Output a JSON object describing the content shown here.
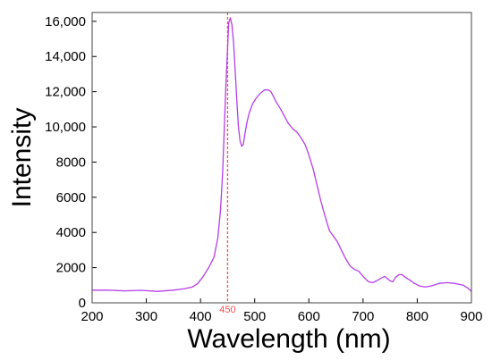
{
  "chart_data": {
    "type": "line",
    "title": "",
    "xlabel": "Wavelength (nm)",
    "ylabel": "Intensity",
    "xlim": [
      200,
      900
    ],
    "ylim": [
      0,
      16500
    ],
    "grid": false,
    "x_ticks": [
      200,
      300,
      400,
      500,
      600,
      700,
      800,
      900
    ],
    "x_tick_labels": [
      "200",
      "300",
      "400",
      "500",
      "600",
      "700",
      "800",
      "900"
    ],
    "y_ticks": [
      0,
      2000,
      4000,
      6000,
      8000,
      10000,
      12000,
      14000,
      16000
    ],
    "y_tick_labels": [
      "0",
      "2000",
      "4000",
      "6000",
      "8000",
      "10,000",
      "12,000",
      "14,000",
      "16,000"
    ],
    "series": [
      {
        "color": "#b53ee8",
        "x": [
          200,
          230,
          260,
          290,
          320,
          350,
          370,
          385,
          395,
          405,
          415,
          425,
          432,
          437,
          441,
          444,
          447,
          450,
          452,
          455,
          458,
          461,
          464,
          467,
          470,
          473,
          476,
          479,
          482,
          486,
          490,
          496,
          502,
          510,
          518,
          525,
          530,
          535,
          540,
          548,
          555,
          562,
          570,
          578,
          585,
          593,
          600,
          608,
          615,
          622,
          630,
          638,
          645,
          652,
          660,
          668,
          676,
          684,
          692,
          700,
          710,
          718,
          725,
          733,
          740,
          746,
          750,
          755,
          760,
          766,
          772,
          778,
          786,
          795,
          805,
          815,
          825,
          840,
          855,
          870,
          885,
          893,
          900
        ],
        "y": [
          720,
          720,
          680,
          710,
          650,
          720,
          800,
          900,
          1100,
          1500,
          2000,
          2600,
          3700,
          5300,
          7500,
          10000,
          12500,
          14500,
          15900,
          16200,
          15800,
          14800,
          13200,
          11500,
          10000,
          9200,
          8900,
          9000,
          9600,
          10300,
          10800,
          11300,
          11600,
          11900,
          12100,
          12100,
          12000,
          11700,
          11400,
          11000,
          10600,
          10200,
          9900,
          9700,
          9400,
          9000,
          8400,
          7600,
          6700,
          5800,
          4900,
          4100,
          3800,
          3500,
          3000,
          2500,
          2100,
          1900,
          1800,
          1500,
          1200,
          1150,
          1250,
          1400,
          1500,
          1350,
          1250,
          1200,
          1450,
          1600,
          1600,
          1450,
          1300,
          1100,
          950,
          900,
          950,
          1100,
          1150,
          1100,
          1000,
          850,
          650
        ]
      }
    ],
    "annotations": [
      {
        "type": "vline",
        "x": 450,
        "label": "450",
        "color": "#ff4d4d"
      }
    ]
  }
}
